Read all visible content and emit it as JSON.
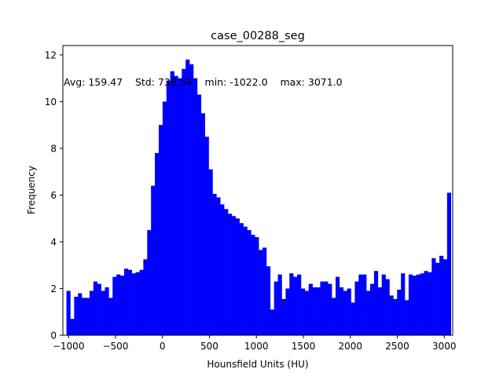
{
  "chart_data": {
    "type": "bar",
    "title": "case_00288_seg",
    "xlabel": "Hounsfield Units (HU)",
    "ylabel": "Frequency",
    "annotation": "Avg: 159.47    Std: 738.54    min: -1022.0    max: 3071.0",
    "xlim": [
      -1060,
      3090
    ],
    "ylim": [
      0,
      12.4
    ],
    "xticks": [
      -1000,
      -500,
      0,
      500,
      1000,
      1500,
      2000,
      2500,
      3000
    ],
    "yticks": [
      0,
      2,
      4,
      6,
      8,
      10,
      12
    ],
    "bar_color": "#0000ff",
    "bins": {
      "start": -1022.0,
      "end": 3071.0,
      "count": 100,
      "values": [
        1.9,
        0.7,
        1.65,
        1.8,
        1.6,
        1.6,
        1.9,
        2.3,
        2.2,
        1.9,
        2.05,
        1.6,
        2.5,
        2.6,
        2.55,
        2.85,
        2.8,
        2.65,
        2.7,
        2.8,
        3.25,
        4.5,
        6.4,
        7.8,
        9.0,
        10.0,
        10.9,
        11.3,
        11.1,
        11.0,
        11.4,
        11.8,
        11.6,
        11.0,
        10.3,
        9.5,
        8.5,
        7.1,
        6.05,
        5.9,
        5.6,
        5.4,
        5.2,
        5.1,
        5.0,
        4.8,
        4.65,
        4.5,
        4.3,
        4.2,
        3.65,
        3.75,
        2.95,
        1.1,
        2.3,
        2.6,
        1.55,
        2.0,
        2.65,
        2.5,
        2.6,
        2.0,
        1.9,
        2.2,
        2.05,
        2.05,
        2.3,
        2.3,
        2.2,
        1.6,
        2.5,
        2.05,
        1.9,
        2.0,
        1.4,
        2.3,
        2.6,
        2.6,
        1.9,
        2.2,
        2.75,
        2.05,
        2.6,
        2.4,
        1.7,
        1.55,
        1.95,
        2.65,
        1.5,
        2.6,
        2.55,
        2.6,
        2.65,
        2.75,
        2.7,
        3.3,
        3.1,
        3.4,
        3.25,
        6.1
      ]
    }
  }
}
